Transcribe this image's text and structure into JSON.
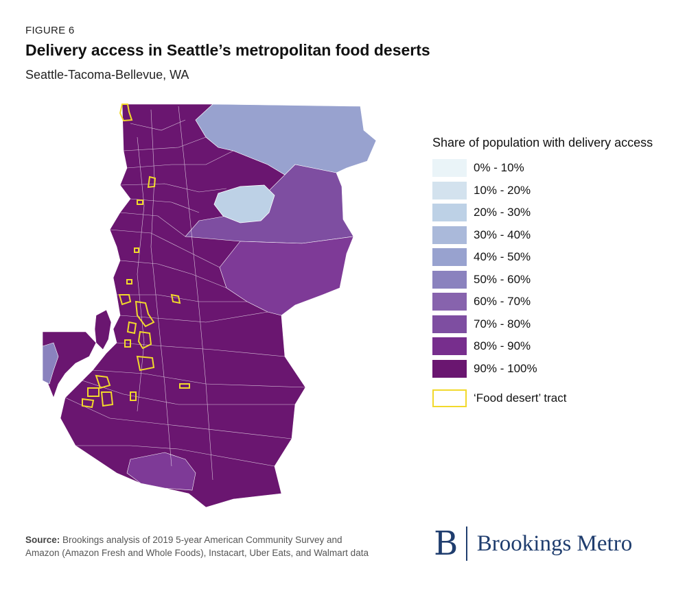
{
  "header": {
    "figure_label": "FIGURE 6",
    "title": "Delivery access in Seattle’s metropolitan food deserts",
    "subtitle": "Seattle-Tacoma-Bellevue, WA"
  },
  "legend": {
    "title": "Share of population with delivery access",
    "items": [
      {
        "label": "0% - 10%",
        "color": "#eaf4f8"
      },
      {
        "label": "10% - 20%",
        "color": "#d3e2ee"
      },
      {
        "label": "20% - 30%",
        "color": "#bdd1e6"
      },
      {
        "label": "30% - 40%",
        "color": "#aab9da"
      },
      {
        "label": "40% - 50%",
        "color": "#98a2cf"
      },
      {
        "label": "50% - 60%",
        "color": "#8a82be"
      },
      {
        "label": "60% - 70%",
        "color": "#8763ad"
      },
      {
        "label": "70% - 80%",
        "color": "#7e4ea1"
      },
      {
        "label": "80% - 90%",
        "color": "#772e8d"
      },
      {
        "label": "90% - 100%",
        "color": "#6a1670"
      }
    ],
    "food_desert_label": "‘Food desert’ tract",
    "food_desert_color": "#f2d92b"
  },
  "source": {
    "label": "Source:",
    "text_line1": "Brookings analysis of 2019 5-year American Community Survey and",
    "text_line2": "Amazon (Amazon Fresh and Whole Foods), Instacart, Uber Eats, and Walmart data"
  },
  "brand": {
    "logo_letter": "B",
    "name": "Brookings Metro"
  }
}
